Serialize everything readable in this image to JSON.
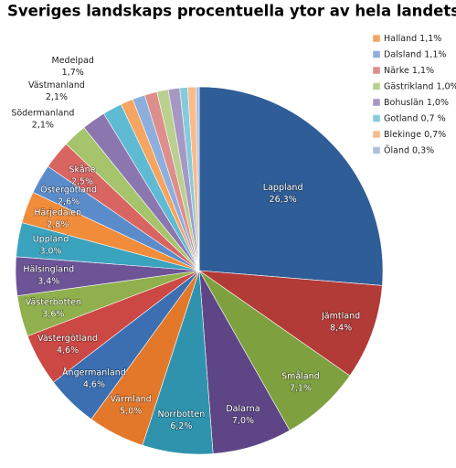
{
  "chart_data": {
    "type": "pie",
    "title": "Sveriges landskaps procentuella ytor av hela landets",
    "categories": [
      "Lappland",
      "Jämtland",
      "Småland",
      "Dalarna",
      "Norrbotten",
      "Värmland",
      "Ångermanland",
      "Västergötland",
      "Västerbotten",
      "Hälsingland",
      "Uppland",
      "Härjedalen",
      "Östergötland",
      "Skåne",
      "Södermanland",
      "Västmanland",
      "Medelpad",
      "Halland",
      "Dalsland",
      "Närke",
      "Gästrikland",
      "Bohuslän",
      "Gotland",
      "Blekinge",
      "Öland"
    ],
    "values": [
      26.3,
      8.4,
      7.1,
      7.0,
      6.2,
      5.0,
      4.6,
      4.6,
      3.6,
      3.4,
      3.0,
      2.8,
      2.6,
      2.5,
      2.1,
      2.1,
      1.7,
      1.1,
      1.1,
      1.1,
      1.0,
      1.0,
      0.7,
      0.7,
      0.3
    ],
    "value_labels": [
      "26,3%",
      "8,4%",
      "7,1%",
      "7,0%",
      "6,2%",
      "5,0%",
      "4,6%",
      "4,6%",
      "3,6%",
      "3,4%",
      "3,0%",
      "2,8%",
      "2,6%",
      "2,5%",
      "2,1%",
      "2,1%",
      "1,7%",
      "1,1%",
      "1,1%",
      "1,1%",
      "1,0%",
      "1,0%",
      "0,7 %",
      "0,7%",
      "0,3%"
    ],
    "colors": [
      "#2f5d97",
      "#b23a37",
      "#7ea03f",
      "#5e4686",
      "#2f93ad",
      "#e3782a",
      "#3b6fb2",
      "#cc4844",
      "#8fb04c",
      "#6d5497",
      "#3aa3be",
      "#f08c3a",
      "#5a8ccc",
      "#d86561",
      "#a5c46b",
      "#8c76b0",
      "#5fbad3",
      "#f6a462",
      "#8eaede",
      "#dd8f8c",
      "#b9d08e",
      "#a697c4",
      "#86cbdc",
      "#f8bb8a",
      "#aebfde"
    ]
  }
}
